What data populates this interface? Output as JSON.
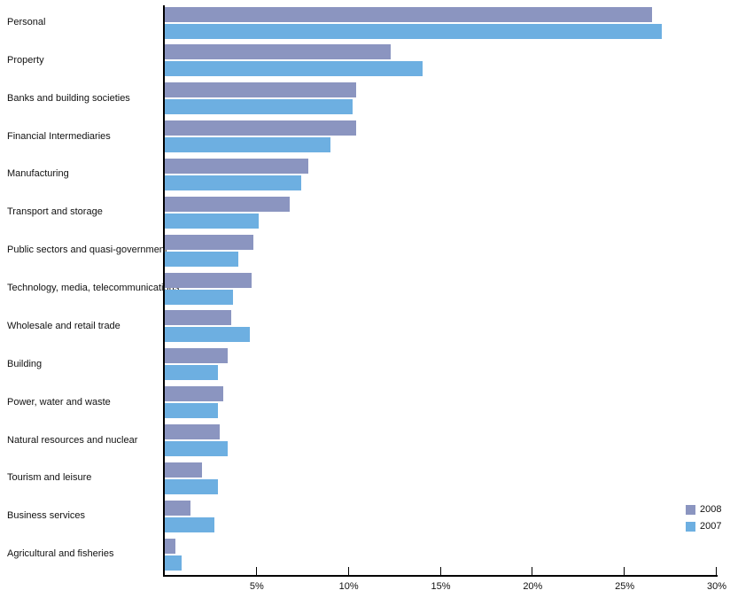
{
  "chart_data": {
    "type": "bar",
    "orientation": "horizontal",
    "title": "",
    "xlabel": "",
    "ylabel": "",
    "categories": [
      "Personal",
      "Property",
      "Banks and building societies",
      "Financial Intermediaries",
      "Manufacturing",
      "Transport and storage",
      "Public sectors and quasi-government",
      "Technology, media, telecommunications",
      "Wholesale and retail trade",
      "Building",
      "Power, water and waste",
      "Natural resources and nuclear",
      "Tourism and leisure",
      "Business services",
      "Agricultural and fisheries"
    ],
    "series": [
      {
        "name": "2008",
        "color": "#8b95c0",
        "values": [
          26.5,
          12.3,
          10.4,
          10.4,
          7.8,
          6.8,
          4.8,
          4.7,
          3.6,
          3.4,
          3.2,
          3.0,
          2.0,
          1.4,
          0.6
        ]
      },
      {
        "name": "2007",
        "color": "#6dafe1",
        "values": [
          27.0,
          14.0,
          10.2,
          9.0,
          7.4,
          5.1,
          4.0,
          3.7,
          4.6,
          2.9,
          2.9,
          3.4,
          2.9,
          2.7,
          0.9
        ]
      }
    ],
    "xlim": [
      0,
      30
    ],
    "xticks": [
      5,
      10,
      15,
      20,
      25,
      30
    ],
    "xtick_labels": [
      "5%",
      "10%",
      "15%",
      "20%",
      "25%",
      "30%"
    ],
    "unit": "%",
    "grid": false,
    "legend_position": "right",
    "axis_color": "#000000",
    "background_color": "#ffffff"
  }
}
